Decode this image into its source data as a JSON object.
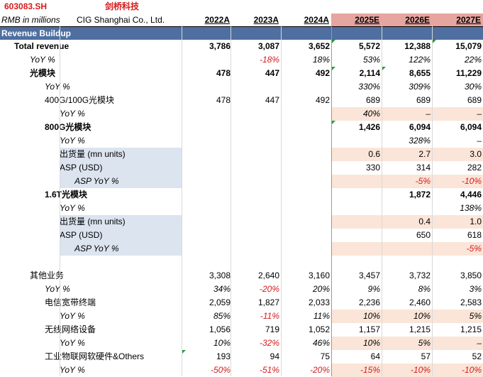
{
  "header": {
    "ticker": "603083.SH",
    "company_cn": "剑桥科技",
    "units": "RMB in millions",
    "company_en": "CIG Shanghai Co., Ltd.",
    "years": [
      "2022A",
      "2023A",
      "2024A",
      "2025E",
      "2026E",
      "2027E"
    ]
  },
  "section_title": "Revenue Buildup",
  "rows": [
    {
      "label": "Total revenue",
      "indent": 20,
      "bold": true,
      "italic": false,
      "v": [
        "3,786",
        "3,087",
        "3,652",
        "5,572",
        "12,388",
        "15,079"
      ],
      "red": [],
      "labelShade": false
    },
    {
      "label": "YoY %",
      "indent": 42,
      "bold": false,
      "italic": true,
      "v": [
        "",
        "-18%",
        "18%",
        "53%",
        "122%",
        "22%"
      ],
      "red": [
        1
      ],
      "labelShade": false
    },
    {
      "label": "光模块",
      "indent": 42,
      "bold": true,
      "italic": false,
      "v": [
        "478",
        "447",
        "492",
        "2,114",
        "8,655",
        "11,229"
      ],
      "red": [],
      "labelShade": false
    },
    {
      "label": "YoY %",
      "indent": 63,
      "bold": false,
      "italic": true,
      "v": [
        "",
        "",
        "",
        "330%",
        "309%",
        "30%"
      ],
      "red": [],
      "labelShade": false
    },
    {
      "label": "400G/100G光模块",
      "indent": 63,
      "bold": false,
      "italic": false,
      "v": [
        "478",
        "447",
        "492",
        "689",
        "689",
        "689"
      ],
      "red": [],
      "labelShade": false
    },
    {
      "label": "YoY %",
      "indent": 84,
      "bold": false,
      "italic": true,
      "v": [
        "",
        "",
        "",
        "40%",
        "–",
        "–"
      ],
      "red": [],
      "labelShade": false,
      "peach": true
    },
    {
      "label": "800G光模块",
      "indent": 63,
      "bold": true,
      "italic": false,
      "v": [
        "",
        "",
        "",
        "1,426",
        "6,094",
        "6,094"
      ],
      "red": [],
      "labelShade": false
    },
    {
      "label": "YoY %",
      "indent": 84,
      "bold": false,
      "italic": true,
      "v": [
        "",
        "",
        "",
        "",
        "328%",
        "–"
      ],
      "red": [],
      "labelShade": false
    },
    {
      "label": "出货量 (mn units)",
      "indent": 84,
      "bold": false,
      "italic": false,
      "v": [
        "",
        "",
        "",
        "0.6",
        "2.7",
        "3.0"
      ],
      "red": [],
      "labelShade": true,
      "peach": true
    },
    {
      "label": "ASP (USD)",
      "indent": 84,
      "bold": false,
      "italic": false,
      "v": [
        "",
        "",
        "",
        "330",
        "314",
        "282"
      ],
      "red": [],
      "labelShade": true
    },
    {
      "label": "ASP YoY %",
      "indent": 105,
      "bold": false,
      "italic": true,
      "v": [
        "",
        "",
        "",
        "",
        "-5%",
        "-10%"
      ],
      "red": [
        4,
        5
      ],
      "labelShade": true,
      "peach": true
    },
    {
      "label": "1.6T光模块",
      "indent": 63,
      "bold": true,
      "italic": false,
      "v": [
        "",
        "",
        "",
        "",
        "1,872",
        "4,446"
      ],
      "red": [],
      "labelShade": false
    },
    {
      "label": "YoY %",
      "indent": 84,
      "bold": false,
      "italic": true,
      "v": [
        "",
        "",
        "",
        "",
        "",
        "138%"
      ],
      "red": [],
      "labelShade": false
    },
    {
      "label": "出货量 (mn units)",
      "indent": 84,
      "bold": false,
      "italic": false,
      "v": [
        "",
        "",
        "",
        "",
        "0.4",
        "1.0"
      ],
      "red": [],
      "labelShade": true,
      "peach": true
    },
    {
      "label": "ASP (USD)",
      "indent": 84,
      "bold": false,
      "italic": false,
      "v": [
        "",
        "",
        "",
        "",
        "650",
        "618"
      ],
      "red": [],
      "labelShade": true
    },
    {
      "label": "ASP YoY %",
      "indent": 105,
      "bold": false,
      "italic": true,
      "v": [
        "",
        "",
        "",
        "",
        "",
        "-5%"
      ],
      "red": [
        5
      ],
      "labelShade": true,
      "peach": true
    },
    {
      "label": "",
      "indent": 0,
      "bold": false,
      "italic": false,
      "v": [
        "",
        "",
        "",
        "",
        "",
        ""
      ],
      "red": [],
      "labelShade": false
    },
    {
      "label": "其他业务",
      "indent": 42,
      "bold": false,
      "italic": false,
      "v": [
        "3,308",
        "2,640",
        "3,160",
        "3,457",
        "3,732",
        "3,850"
      ],
      "red": [],
      "labelShade": false
    },
    {
      "label": "YoY %",
      "indent": 63,
      "bold": false,
      "italic": true,
      "v": [
        "34%",
        "-20%",
        "20%",
        "9%",
        "8%",
        "3%"
      ],
      "red": [
        1
      ],
      "labelShade": false
    },
    {
      "label": "电信宽带终端",
      "indent": 63,
      "bold": false,
      "italic": false,
      "v": [
        "2,059",
        "1,827",
        "2,033",
        "2,236",
        "2,460",
        "2,583"
      ],
      "red": [],
      "labelShade": false
    },
    {
      "label": "YoY %",
      "indent": 84,
      "bold": false,
      "italic": true,
      "v": [
        "85%",
        "-11%",
        "11%",
        "10%",
        "10%",
        "5%"
      ],
      "red": [
        1
      ],
      "labelShade": false,
      "peach": true
    },
    {
      "label": "无线网络设备",
      "indent": 63,
      "bold": false,
      "italic": false,
      "v": [
        "1,056",
        "719",
        "1,052",
        "1,157",
        "1,215",
        "1,215"
      ],
      "red": [],
      "labelShade": false
    },
    {
      "label": "YoY %",
      "indent": 84,
      "bold": false,
      "italic": true,
      "v": [
        "10%",
        "-32%",
        "46%",
        "10%",
        "5%",
        "–"
      ],
      "red": [
        1
      ],
      "labelShade": false,
      "peach": true
    },
    {
      "label": "工业物联网软硬件&Others",
      "indent": 63,
      "bold": false,
      "italic": false,
      "v": [
        "193",
        "94",
        "75",
        "64",
        "57",
        "52"
      ],
      "red": [],
      "labelShade": false
    },
    {
      "label": "YoY %",
      "indent": 84,
      "bold": false,
      "italic": true,
      "v": [
        "-50%",
        "-51%",
        "-20%",
        "-15%",
        "-10%",
        "-10%"
      ],
      "red": [
        0,
        1,
        2,
        3,
        4,
        5
      ],
      "labelShade": false,
      "peach": true
    }
  ],
  "colors": {
    "section_bg": "#4f6fa0",
    "estimate_header_bg": "#e6a59f",
    "label_shade": "#dbe4ef",
    "estimate_shade": "#fbe5d8",
    "negative": "#d41a1a",
    "tick": "#2e9a3a"
  }
}
